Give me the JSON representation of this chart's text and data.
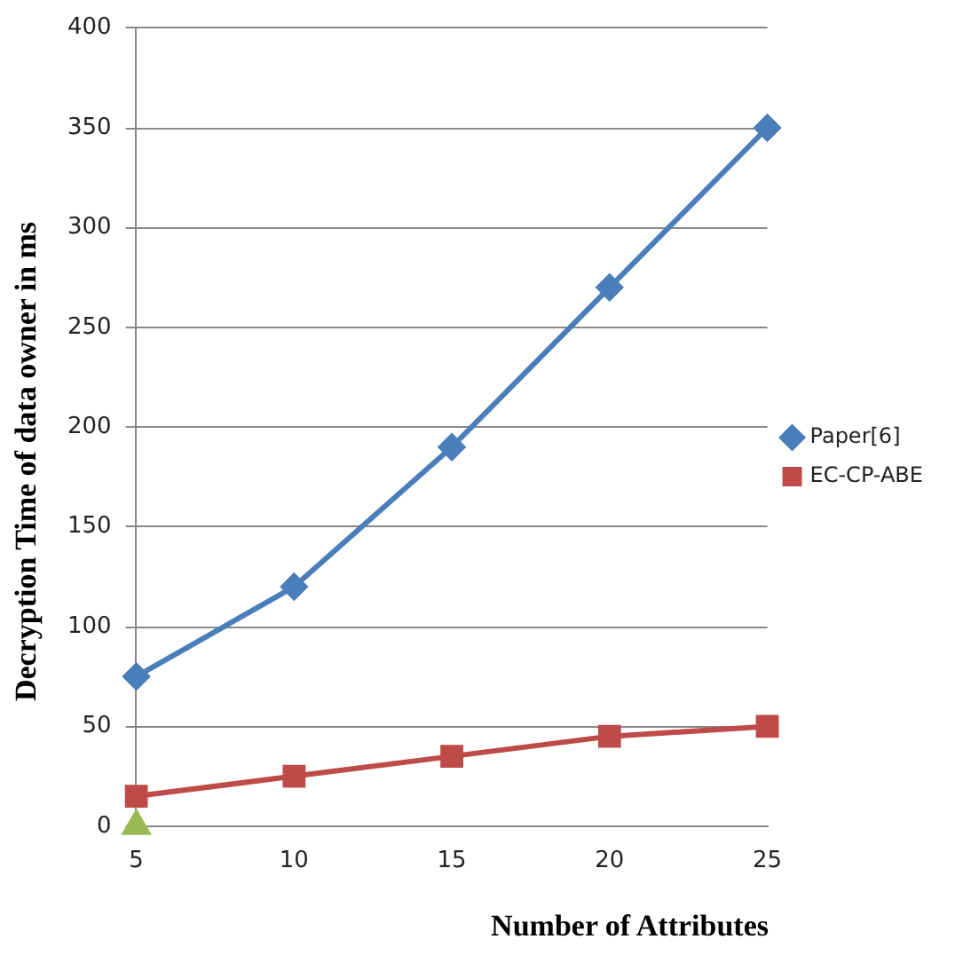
{
  "chart_data": {
    "type": "line",
    "xlabel": "Number of Attributes",
    "ylabel": "Decryption Time of data owner in ms",
    "categories": [
      "5",
      "10",
      "15",
      "20",
      "25"
    ],
    "series": [
      {
        "name": "Paper[6]",
        "color": "#4a7ebb",
        "values": [
          75,
          120,
          190,
          270,
          350
        ],
        "marker": "diamond"
      },
      {
        "name": "EC-CP-ABE",
        "color": "#be4b48",
        "values": [
          15,
          25,
          35,
          45,
          50
        ],
        "marker": "square"
      },
      {
        "color": "#98b954",
        "values": [
          0,
          null,
          null,
          null,
          null
        ],
        "marker": "triangle"
      }
    ],
    "ylim": [
      0,
      400
    ],
    "yticks": [
      0,
      50,
      100,
      150,
      200,
      250,
      300,
      350,
      400
    ],
    "grid": "y",
    "legend": "right"
  }
}
